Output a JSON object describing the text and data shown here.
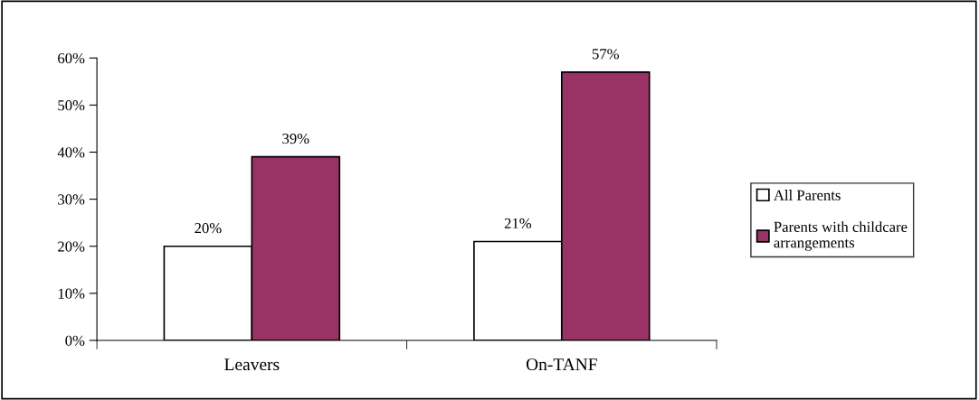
{
  "chart_data": {
    "type": "bar",
    "categories": [
      "Leavers",
      "On-TANF"
    ],
    "series": [
      {
        "name": "All Parents",
        "color": "#ffffff",
        "values": [
          20,
          21
        ],
        "value_labels": [
          "20%",
          "21%"
        ]
      },
      {
        "name": "Parents with childcare arrangements",
        "color": "#993366",
        "values": [
          39,
          57
        ],
        "value_labels": [
          "39%",
          "57%"
        ]
      }
    ],
    "ylim": [
      0,
      60
    ],
    "yticks": [
      {
        "value": 0,
        "label": "0%"
      },
      {
        "value": 10,
        "label": "10%"
      },
      {
        "value": 20,
        "label": "20%"
      },
      {
        "value": 30,
        "label": "30%"
      },
      {
        "value": 40,
        "label": "40%"
      },
      {
        "value": 50,
        "label": "50%"
      },
      {
        "value": 60,
        "label": "60%"
      }
    ],
    "legend": "right",
    "grid": false
  }
}
